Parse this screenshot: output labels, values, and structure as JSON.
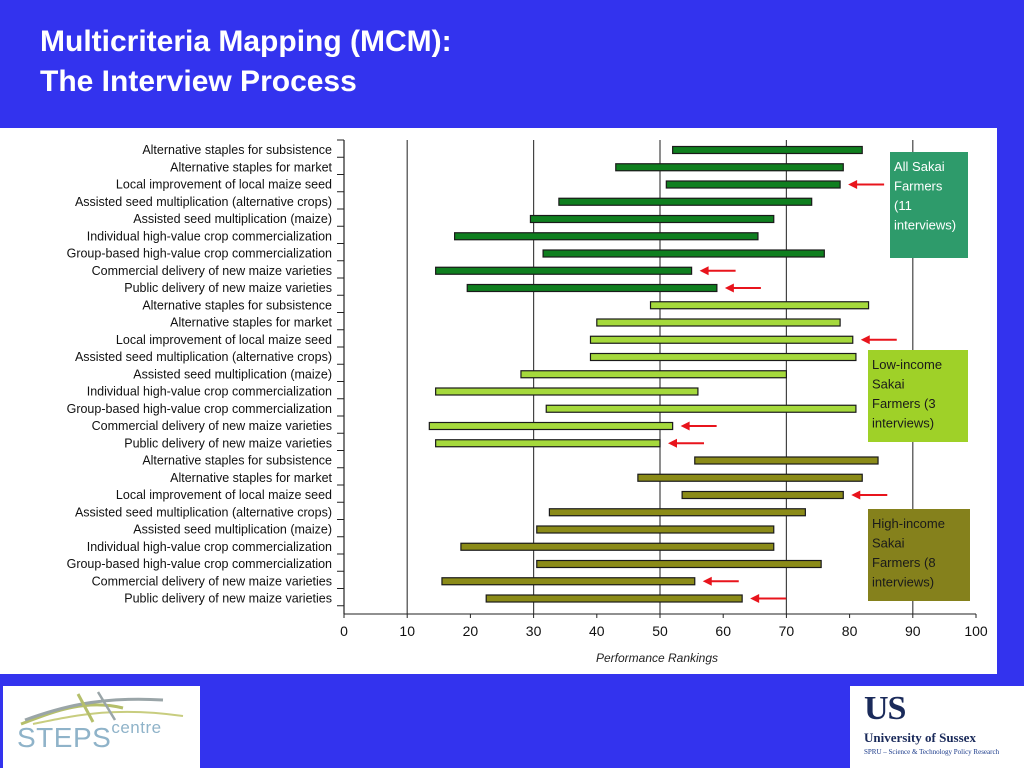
{
  "slide": {
    "title_line1": "Multicriteria Mapping (MCM):",
    "title_line2": "The Interview Process"
  },
  "logos": {
    "steps_main": "STEPS",
    "steps_sup": "centre",
    "sussex_mark": "US",
    "sussex_name": "University of Sussex",
    "sussex_sub": "SPRU – Science & Technology Policy Research"
  },
  "colors": {
    "group1_bar": "#0f7f1f",
    "group1_legend": "#2e9b6b",
    "group2_bar": "#a5d93c",
    "group2_legend": "#9fd128",
    "group3_bar": "#8b8b18",
    "group3_legend": "#85811c",
    "arrow": "#e8141c"
  },
  "chart_data": {
    "type": "bar",
    "subtype": "floating-range",
    "xlabel": "Performance Rankings",
    "xlim": [
      0,
      100
    ],
    "xticks": [
      "0",
      "10",
      "20",
      "30",
      "40",
      "50",
      "60",
      "70",
      "80",
      "90",
      "100"
    ],
    "grid": "vertical at 10, 30, 50, 70, 90",
    "categories": [
      "Alternative staples for subsistence",
      "Alternative staples for market",
      "Local improvement of local maize seed",
      "Assisted seed multiplication (alternative crops)",
      "Assisted seed multiplication (maize)",
      "Individual high-value crop commercialization",
      "Group-based high-value crop commercialization",
      "Commercial delivery of new maize varieties",
      "Public delivery of new maize varieties"
    ],
    "series": [
      {
        "name": "All Sakai Farmers (11 interviews)",
        "legend_lines": [
          "All Sakai",
          "Farmers",
          "(11",
          "interviews)"
        ],
        "color_key": "group1",
        "ranges": [
          [
            52,
            82
          ],
          [
            43,
            79
          ],
          [
            51,
            78.5
          ],
          [
            34,
            74
          ],
          [
            29.5,
            68
          ],
          [
            17.5,
            65.5
          ],
          [
            31.5,
            76
          ],
          [
            14.5,
            55
          ],
          [
            19.5,
            59
          ]
        ],
        "arrows": [
          2,
          7,
          8
        ]
      },
      {
        "name": "Low-income Sakai Farmers (3 interviews)",
        "legend_lines": [
          "Low-income",
          "Sakai",
          "Farmers (3",
          "interviews)"
        ],
        "color_key": "group2",
        "ranges": [
          [
            48.5,
            83
          ],
          [
            40,
            78.5
          ],
          [
            39,
            80.5
          ],
          [
            39,
            81
          ],
          [
            28,
            70
          ],
          [
            14.5,
            56
          ],
          [
            32,
            81
          ],
          [
            13.5,
            52
          ],
          [
            14.5,
            50
          ]
        ],
        "arrows": [
          2,
          7,
          8
        ]
      },
      {
        "name": "High-income Sakai Farmers (8 interviews)",
        "legend_lines": [
          "High-income",
          "Sakai",
          "Farmers  (8",
          "interviews)"
        ],
        "color_key": "group3",
        "ranges": [
          [
            55.5,
            84.5
          ],
          [
            46.5,
            82
          ],
          [
            53.5,
            79
          ],
          [
            32.5,
            73
          ],
          [
            30.5,
            68
          ],
          [
            18.5,
            68
          ],
          [
            30.5,
            75.5
          ],
          [
            15.5,
            55.5
          ],
          [
            22.5,
            63
          ]
        ],
        "arrows": [
          2,
          7,
          8
        ]
      }
    ]
  }
}
